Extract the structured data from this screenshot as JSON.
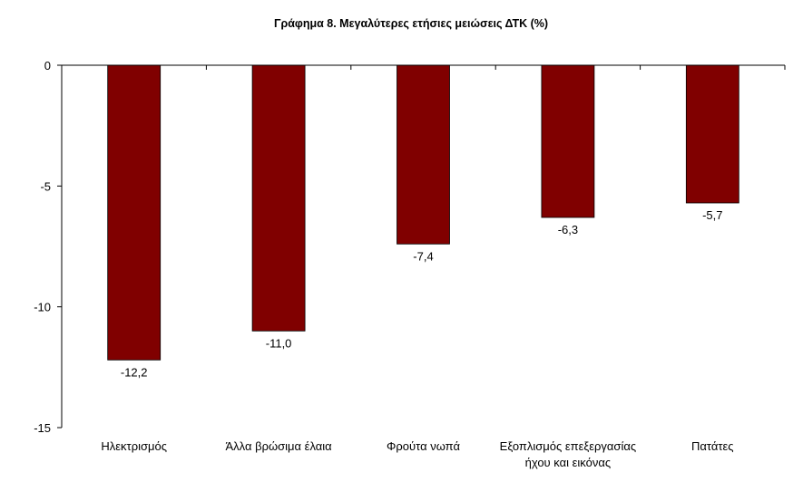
{
  "chart_data": {
    "type": "bar",
    "title": "Γράφημα 8. Μεγαλύτερες ετήσιες μειώσεις ΔΤΚ (%)",
    "categories": [
      [
        "Ηλεκτρισμός"
      ],
      [
        "Άλλα βρώσιμα έλαια"
      ],
      [
        "Φρούτα νωπά"
      ],
      [
        "Εξοπλισμός επεξεργασίας",
        "ήχου και εικόνας"
      ],
      [
        "Πατάτες"
      ]
    ],
    "values": [
      -12.2,
      -11.0,
      -7.4,
      -6.3,
      -5.7
    ],
    "data_labels": [
      "-12,2",
      "-11,0",
      "-7,4",
      "-6,3",
      "-5,7"
    ],
    "ylim": [
      -15,
      0
    ],
    "yticks": [
      0,
      -5,
      -10,
      -15
    ],
    "ytick_labels": [
      "0",
      "-5",
      "-10",
      "-15"
    ],
    "xlabel": "",
    "ylabel": "",
    "grid": false,
    "legend": "none",
    "bar_color": "#800000"
  }
}
